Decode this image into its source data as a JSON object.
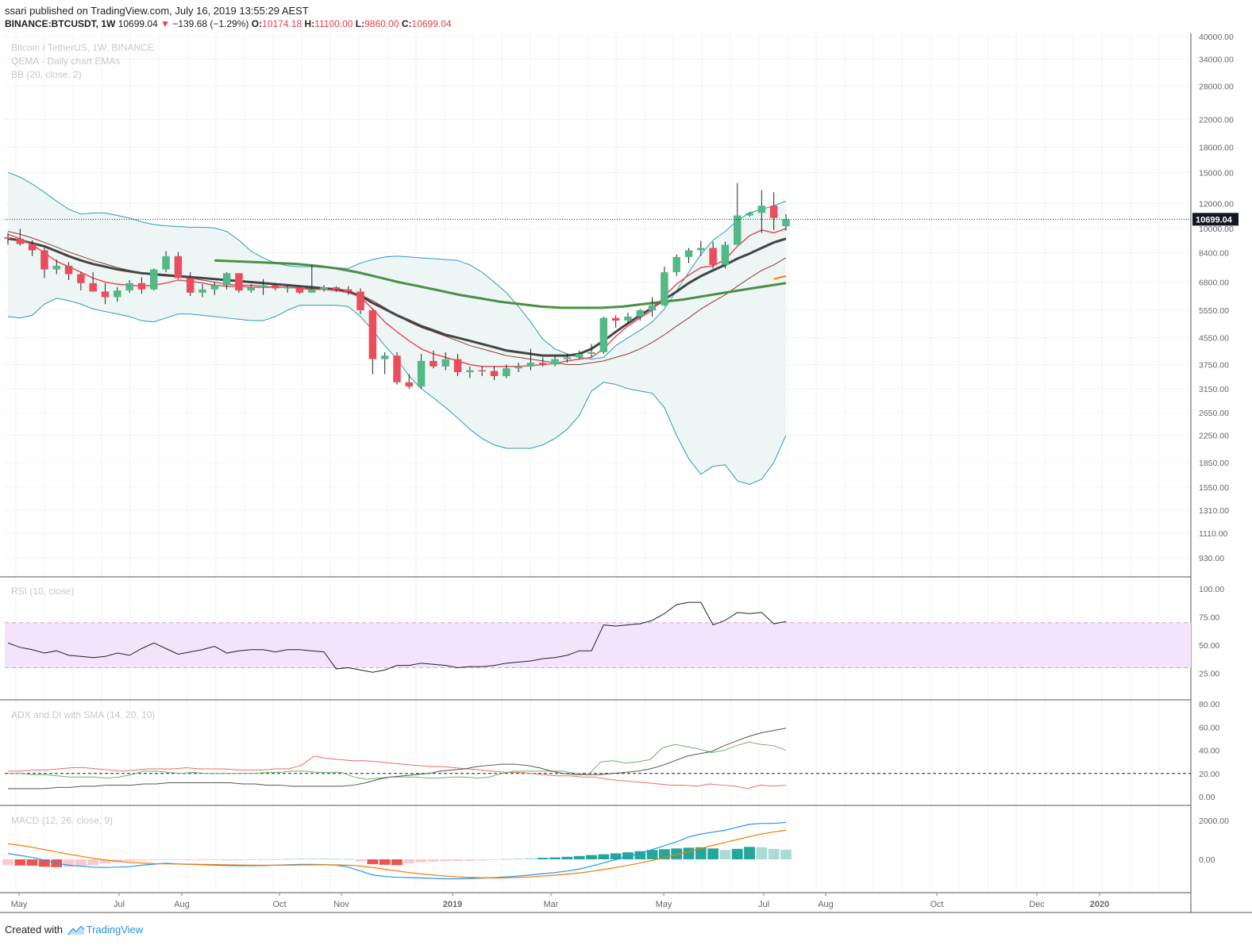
{
  "header": {
    "publisher": "ssari",
    "published_text": "published on TradingView.com, July 16, 2019 13:55:29 AEST",
    "symbol": "BINANCE:BTCUSDT, 1W",
    "last": "10699.04",
    "change": "−139.68 (−1.29%)",
    "o_label": "O:",
    "o_value": "10174.18",
    "h_label": "H:",
    "h_value": "11100.00",
    "l_label": "L:",
    "l_value": "9860.00",
    "c_label": "C:",
    "c_value": "10699.04"
  },
  "footer": {
    "created_with": "Created with",
    "brand": "TradingView"
  },
  "colors": {
    "up": "#53b987",
    "down": "#eb4d5c",
    "bb": "#2a9bb0",
    "bb_fill": "#eef6f5",
    "ema_red": "#e84a5a",
    "ema_brown": "#8b3a3a",
    "ema_black": "#444444",
    "ema_green": "#4b8f45",
    "rsi_band": "#f3e4fb",
    "adx": "#555555",
    "di_plus": "#6ab46a",
    "di_minus": "#f36a6a",
    "macd": "#2196f3",
    "signal": "#f57c00"
  },
  "chart_data": {
    "type": "candlestick",
    "main_pane": {
      "legends": [
        "Bitcoin / TetherUS, 1W, BINANCE",
        "QEMA - Daily chart EMAs",
        "BB (20, close, 2)"
      ],
      "y_scale": "log",
      "y_ticks": [
        "40000.00",
        "34000.00",
        "28000.00",
        "22000.00",
        "18000.00",
        "15000.00",
        "12000.00",
        "10000.00",
        "8400.00",
        "6800.00",
        "5550.00",
        "4550.00",
        "3750.00",
        "3150.00",
        "2650.00",
        "2250.00",
        "1850.00",
        "1550.00",
        "1310.00",
        "1110.00",
        "930.00"
      ],
      "price_label": "10699.04",
      "candles": [
        [
          9400,
          9700,
          8900,
          9300
        ],
        [
          9300,
          9990,
          8850,
          8950
        ],
        [
          8950,
          9200,
          8200,
          8550
        ],
        [
          8550,
          8700,
          7000,
          7450
        ],
        [
          7450,
          8000,
          7200,
          7650
        ],
        [
          7650,
          7850,
          6900,
          7200
        ],
        [
          7200,
          7300,
          6400,
          6750
        ],
        [
          6750,
          7300,
          6450,
          6350
        ],
        [
          6350,
          6750,
          5800,
          6100
        ],
        [
          6100,
          6550,
          5900,
          6400
        ],
        [
          6400,
          6900,
          6300,
          6750
        ],
        [
          6750,
          7050,
          6250,
          6450
        ],
        [
          6450,
          7500,
          6400,
          7450
        ],
        [
          7450,
          8500,
          7300,
          8200
        ],
        [
          8200,
          8450,
          6950,
          7000
        ],
        [
          7000,
          7300,
          6150,
          6300
        ],
        [
          6300,
          6700,
          6100,
          6450
        ],
        [
          6450,
          6800,
          6200,
          6650
        ],
        [
          6650,
          7300,
          6450,
          7250
        ],
        [
          7250,
          7250,
          6300,
          6400
        ],
        [
          6400,
          6700,
          6300,
          6550
        ],
        [
          6550,
          6950,
          6200,
          6650
        ],
        [
          6650,
          6750,
          6400,
          6500
        ],
        [
          6500,
          6650,
          6300,
          6550
        ],
        [
          6550,
          6600,
          6250,
          6300
        ],
        [
          6300,
          7700,
          6300,
          6450
        ],
        [
          6450,
          6650,
          6350,
          6550
        ],
        [
          6550,
          6600,
          6350,
          6450
        ],
        [
          6450,
          6600,
          6200,
          6350
        ],
        [
          6350,
          6500,
          5400,
          5550
        ],
        [
          5550,
          5600,
          3500,
          3900
        ],
        [
          3900,
          4100,
          3500,
          4000
        ],
        [
          4000,
          4100,
          3250,
          3300
        ],
        [
          3300,
          3500,
          3150,
          3200
        ],
        [
          3200,
          4050,
          3150,
          3850
        ],
        [
          3850,
          4150,
          3650,
          3700
        ],
        [
          3700,
          4100,
          3600,
          3900
        ],
        [
          3900,
          4050,
          3450,
          3550
        ],
        [
          3550,
          3700,
          3400,
          3600
        ],
        [
          3600,
          3700,
          3450,
          3580
        ],
        [
          3580,
          3700,
          3350,
          3450
        ],
        [
          3450,
          3750,
          3400,
          3650
        ],
        [
          3650,
          3800,
          3550,
          3700
        ],
        [
          3700,
          4200,
          3600,
          3800
        ],
        [
          3800,
          3950,
          3700,
          3750
        ],
        [
          3750,
          4000,
          3700,
          3900
        ],
        [
          3900,
          4050,
          3800,
          3950
        ],
        [
          3950,
          4150,
          3900,
          4050
        ],
        [
          4050,
          4350,
          3950,
          4100
        ],
        [
          4100,
          5300,
          4050,
          5250
        ],
        [
          5250,
          5350,
          4900,
          5150
        ],
        [
          5150,
          5450,
          5050,
          5300
        ],
        [
          5300,
          5600,
          5150,
          5550
        ],
        [
          5550,
          6100,
          5300,
          5750
        ],
        [
          5750,
          7600,
          5700,
          7300
        ],
        [
          7300,
          8300,
          7100,
          8150
        ],
        [
          8150,
          8700,
          7800,
          8550
        ],
        [
          8550,
          9150,
          8200,
          8700
        ],
        [
          8700,
          9100,
          7500,
          7700
        ],
        [
          7700,
          9100,
          7500,
          8900
        ],
        [
          8900,
          13900,
          8900,
          11000
        ],
        [
          11000,
          11300,
          10900,
          11200
        ],
        [
          11200,
          13200,
          9700,
          11800
        ],
        [
          11800,
          13000,
          9900,
          10800
        ],
        [
          10174,
          11100,
          9860,
          10699
        ]
      ],
      "bb_upper": [
        15000,
        14500,
        13800,
        13000,
        12200,
        11500,
        11100,
        11200,
        11200,
        11000,
        10800,
        10500,
        10300,
        10200,
        10150,
        10100,
        10100,
        10050,
        9800,
        9200,
        8500,
        8100,
        7800,
        7650,
        7600,
        7600,
        7550,
        7550,
        7500,
        7800,
        8000,
        8150,
        8200,
        8150,
        8100,
        8050,
        8000,
        7950,
        7700,
        7300,
        6800,
        6300,
        5700,
        5100,
        4500,
        4200,
        4050,
        3950,
        3900,
        3950,
        4300,
        4550,
        4800,
        5100,
        5600,
        6400,
        7300,
        8300,
        9200,
        9800,
        10600,
        11200,
        11500,
        11800,
        12200
      ],
      "bb_lower": [
        5300,
        5250,
        5350,
        5800,
        6050,
        5950,
        5800,
        5600,
        5500,
        5400,
        5300,
        5150,
        5100,
        5250,
        5400,
        5400,
        5350,
        5300,
        5250,
        5200,
        5150,
        5150,
        5300,
        5550,
        5750,
        5750,
        5750,
        5750,
        5700,
        5300,
        4800,
        4300,
        3900,
        3450,
        3150,
        2950,
        2750,
        2550,
        2350,
        2200,
        2100,
        2050,
        2050,
        2050,
        2100,
        2200,
        2350,
        2600,
        3100,
        3300,
        3250,
        3150,
        3100,
        3050,
        2750,
        2250,
        1900,
        1700,
        1800,
        1820,
        1620,
        1580,
        1640,
        1850,
        2250
      ],
      "ema_red": [
        9600,
        9300,
        8900,
        8400,
        7900,
        7600,
        7300,
        7000,
        6800,
        6700,
        6650,
        6600,
        6650,
        6750,
        6900,
        6850,
        6750,
        6650,
        6600,
        6600,
        6550,
        6550,
        6550,
        6550,
        6500,
        6450,
        6450,
        6400,
        6300,
        6100,
        5600,
        5100,
        4750,
        4450,
        4200,
        4050,
        3950,
        3850,
        3750,
        3700,
        3700,
        3700,
        3700,
        3720,
        3750,
        3780,
        3850,
        3900,
        3950,
        4200,
        4600,
        4950,
        5250,
        5550,
        6150,
        6700,
        7150,
        7550,
        7650,
        8000,
        8800,
        9500,
        9900,
        9700,
        10000
      ],
      "ema_brown": [
        9800,
        9600,
        9350,
        9050,
        8750,
        8450,
        8200,
        7950,
        7750,
        7550,
        7400,
        7250,
        7150,
        7100,
        7050,
        7000,
        6900,
        6800,
        6700,
        6650,
        6650,
        6600,
        6550,
        6550,
        6500,
        6500,
        6450,
        6400,
        6350,
        6200,
        5950,
        5650,
        5350,
        5100,
        4900,
        4750,
        4600,
        4450,
        4300,
        4200,
        4100,
        4000,
        3950,
        3900,
        3850,
        3800,
        3750,
        3750,
        3800,
        3850,
        3950,
        4050,
        4200,
        4400,
        4650,
        4950,
        5250,
        5600,
        5900,
        6200,
        6600,
        7000,
        7400,
        7700,
        8100
      ],
      "ema_black": [
        9300,
        9200,
        9000,
        8800,
        8500,
        8200,
        7950,
        7750,
        7600,
        7450,
        7350,
        7250,
        7200,
        7150,
        7100,
        7050,
        7000,
        6950,
        6900,
        6850,
        6800,
        6750,
        6700,
        6650,
        6600,
        6550,
        6500,
        6450,
        6350,
        6150,
        5850,
        5600,
        5350,
        5150,
        4950,
        4800,
        4650,
        4550,
        4450,
        4350,
        4250,
        4150,
        4100,
        4050,
        4000,
        4000,
        4000,
        4050,
        4200,
        4450,
        4750,
        5050,
        5350,
        5650,
        6000,
        6350,
        6750,
        7100,
        7400,
        7700,
        8050,
        8350,
        8700,
        9050,
        9300
      ]
    }
  }
}
